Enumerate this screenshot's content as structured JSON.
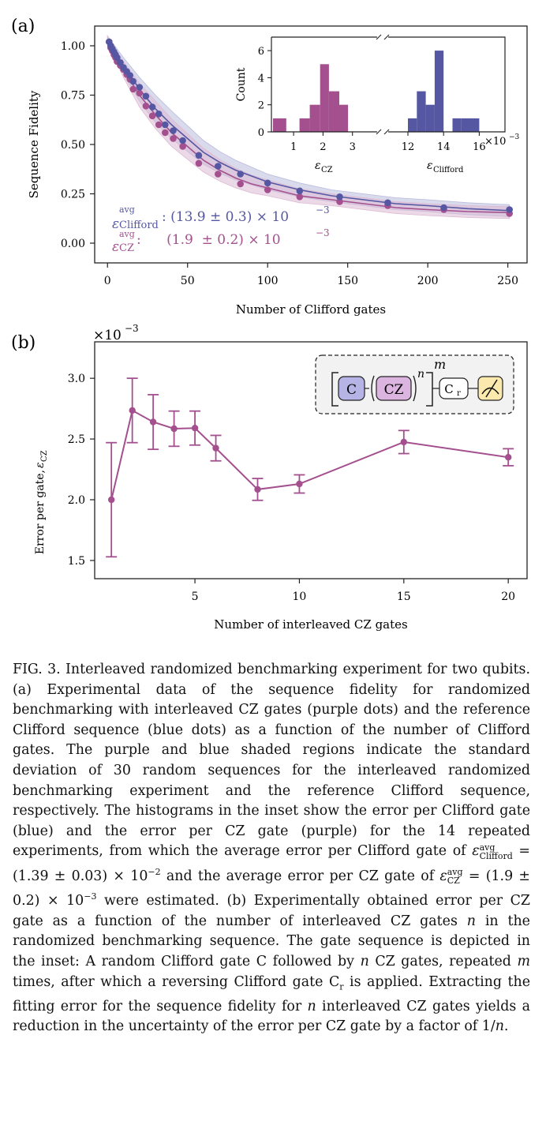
{
  "colors": {
    "clifford": "#5557a3",
    "cz": "#a4508f",
    "clifford_band": "#b9bcdd",
    "cz_band": "#dcb9d3",
    "inset_bg": "#f2f2f2"
  },
  "panel_a": {
    "label": "(a)",
    "xlabel": "Number of Clifford gates",
    "ylabel": "Sequence Fidelity",
    "xticks": [
      "0",
      "50",
      "100",
      "150",
      "200",
      "250"
    ],
    "yticks": [
      "0.00",
      "0.25",
      "0.50",
      "0.75",
      "1.00"
    ],
    "legend": {
      "clifford_symbol": "ε",
      "clifford_sup": "avg",
      "clifford_sub": "Clifford",
      "clifford_value": ": (13.9 ± 0.3) × 10",
      "clifford_exp": "−3",
      "cz_symbol": "ε",
      "cz_sup": "avg",
      "cz_sub": "CZ",
      "cz_value": ":      (1.9  ± 0.2) × 10",
      "cz_exp": "−3"
    },
    "inset": {
      "ylabel": "Count",
      "yticks": [
        "0",
        "2",
        "4",
        "6"
      ],
      "xticks_left": [
        "1",
        "2",
        "3"
      ],
      "xticks_right": [
        "12",
        "14",
        "16"
      ],
      "xlabel_left_symbol": "ε",
      "xlabel_left_sub": "CZ",
      "xlabel_right_symbol": "ε",
      "xlabel_right_sub": "Clifford",
      "scale_base": "×10",
      "scale_exp": "−3"
    }
  },
  "panel_b": {
    "label": "(b)",
    "scale_base": "×10",
    "scale_exp": "−3",
    "xlabel": "Number of interleaved CZ gates",
    "ylabel_main": "Error per gate, ",
    "ylabel_symbol": "ε",
    "ylabel_sub": "CZ",
    "xticks": [
      "5",
      "10",
      "15",
      "20"
    ],
    "yticks": [
      "1.5",
      "2.0",
      "2.5",
      "3.0"
    ],
    "inset": {
      "gate_c": "C",
      "gate_cz": "CZ",
      "n": "n",
      "m": "m",
      "gate_cr": "C",
      "gate_cr_sub": "r"
    }
  },
  "chart_data": [
    {
      "type": "scatter",
      "xlabel": "Number of Clifford gates",
      "ylabel": "Sequence Fidelity",
      "xlim": [
        -8,
        262
      ],
      "ylim": [
        -0.1,
        1.1
      ],
      "series": [
        {
          "name": "Clifford",
          "x": [
            1,
            2,
            3,
            4,
            5,
            6,
            8,
            10,
            12,
            14,
            16,
            20,
            24,
            28,
            32,
            36,
            41,
            47,
            57,
            69,
            83,
            100,
            120,
            145,
            175,
            210,
            251
          ],
          "y": [
            1.02,
            1.0,
            0.985,
            0.97,
            0.955,
            0.94,
            0.915,
            0.89,
            0.87,
            0.85,
            0.82,
            0.79,
            0.745,
            0.69,
            0.655,
            0.6,
            0.57,
            0.52,
            0.445,
            0.39,
            0.35,
            0.305,
            0.265,
            0.235,
            0.205,
            0.18,
            0.17
          ]
        },
        {
          "name": "CZ",
          "x": [
            1,
            2,
            3,
            4,
            5,
            6,
            8,
            10,
            12,
            14,
            16,
            20,
            24,
            28,
            32,
            36,
            41,
            47,
            57,
            69,
            83,
            100,
            120,
            145,
            175,
            210,
            251
          ],
          "y": [
            1.02,
            0.99,
            0.975,
            0.955,
            0.94,
            0.92,
            0.9,
            0.88,
            0.855,
            0.83,
            0.78,
            0.76,
            0.695,
            0.645,
            0.6,
            0.56,
            0.53,
            0.49,
            0.405,
            0.35,
            0.3,
            0.27,
            0.235,
            0.21,
            0.19,
            0.17,
            0.15
          ]
        }
      ],
      "fit_curves": [
        {
          "name": "Clifford",
          "x": [
            0,
            10,
            20,
            30,
            40,
            50,
            60,
            70,
            80,
            90,
            100,
            120,
            140,
            160,
            180,
            200,
            225,
            251
          ],
          "y": [
            1.03,
            0.9,
            0.78,
            0.68,
            0.6,
            0.53,
            0.46,
            0.41,
            0.37,
            0.34,
            0.31,
            0.27,
            0.24,
            0.22,
            0.2,
            0.19,
            0.175,
            0.165
          ],
          "band": [
            0.02,
            0.04,
            0.06,
            0.07,
            0.07,
            0.065,
            0.06,
            0.055,
            0.05,
            0.045,
            0.04,
            0.035,
            0.03,
            0.03,
            0.03,
            0.03,
            0.03,
            0.03
          ]
        },
        {
          "name": "CZ",
          "x": [
            0,
            10,
            20,
            30,
            40,
            50,
            60,
            70,
            80,
            90,
            100,
            120,
            140,
            160,
            180,
            200,
            225,
            251
          ],
          "y": [
            1.03,
            0.88,
            0.75,
            0.65,
            0.56,
            0.49,
            0.42,
            0.37,
            0.33,
            0.3,
            0.28,
            0.24,
            0.22,
            0.2,
            0.18,
            0.17,
            0.16,
            0.155
          ],
          "band": [
            0.02,
            0.04,
            0.06,
            0.07,
            0.07,
            0.065,
            0.06,
            0.055,
            0.05,
            0.045,
            0.04,
            0.035,
            0.03,
            0.03,
            0.03,
            0.03,
            0.03,
            0.03
          ]
        }
      ]
    },
    {
      "type": "bar",
      "ylabel": "Count",
      "ylim": [
        0,
        7
      ],
      "series": [
        {
          "name": "CZ",
          "bins_left": [
            0.3,
            0.75,
            1.2,
            1.55,
            1.9,
            2.2,
            2.55,
            2.85,
            3.05
          ],
          "counts": [
            1,
            0,
            1,
            2,
            5,
            3,
            2,
            0
          ]
        },
        {
          "name": "Clifford",
          "bins_left": [
            12.0,
            12.5,
            13.0,
            13.5,
            14.0,
            14.5,
            15.0,
            16.0
          ],
          "counts": [
            1,
            3,
            2,
            6,
            0,
            1,
            1
          ]
        }
      ]
    },
    {
      "type": "line",
      "xlabel": "Number of interleaved CZ gates",
      "ylabel": "Error per gate, εCZ",
      "xlim": [
        0.2,
        20.9
      ],
      "ylim": [
        1.35,
        3.3
      ],
      "x": [
        1,
        2,
        3,
        4,
        5,
        6,
        8,
        10,
        15,
        20
      ],
      "y": [
        2.0,
        2.735,
        2.64,
        2.585,
        2.59,
        2.425,
        2.085,
        2.13,
        2.475,
        2.35
      ],
      "yerr": [
        0.47,
        0.265,
        0.225,
        0.145,
        0.14,
        0.105,
        0.09,
        0.075,
        0.095,
        0.07
      ]
    }
  ],
  "caption": {
    "fig_label": "FIG. 3.",
    "p1": " Interleaved randomized benchmarking experiment for two qubits. (a) Experimental data of the sequence fidelity for randomized benchmarking with interleaved CZ gates (purple dots) and the reference Clifford sequence (blue dots) as a function of the number of Clifford gates. The purple and blue shaded regions indicate the standard deviation of 30 random sequences for the interleaved randomized benchmarking experiment and the reference Clifford sequence, respectively. The histograms in the inset show the error per Clifford gate (blue) and the error per CZ gate (purple) for the 14 repeated experiments, from which the average error per Clifford gate of ",
    "eq1": "ε",
    "eq1_sup": "avg",
    "eq1_sub": "Clifford",
    "eq1_val": " = (1.39 ± 0.03) × 10",
    "eq1_exp": "−2",
    "p2": " and the average error per CZ gate of ",
    "eq2": "ε",
    "eq2_sup": "avg",
    "eq2_sub": "CZ",
    "eq2_val": " = (1.9 ± 0.2) × 10",
    "eq2_exp": "−3",
    "p3": " were estimated. (b) Experimentally obtained error per CZ gate as a function of the number of interleaved CZ gates ",
    "n1": "n",
    "p4": " in the randomized benchmarking sequence. The gate sequence is depicted in the inset: A random Clifford gate C followed by ",
    "n2": "n",
    "p5": " CZ gates, repeated ",
    "m1": "m",
    "p6": " times, after which a reversing Clifford gate C",
    "cr_sub": "r",
    "p7": " is applied. Extracting the fitting error for the sequence fidelity for ",
    "n3": "n",
    "p8": " interleaved CZ gates yields a reduction in the uncertainty of the error per CZ gate by a factor of 1/",
    "n4": "n",
    "p9": "."
  }
}
